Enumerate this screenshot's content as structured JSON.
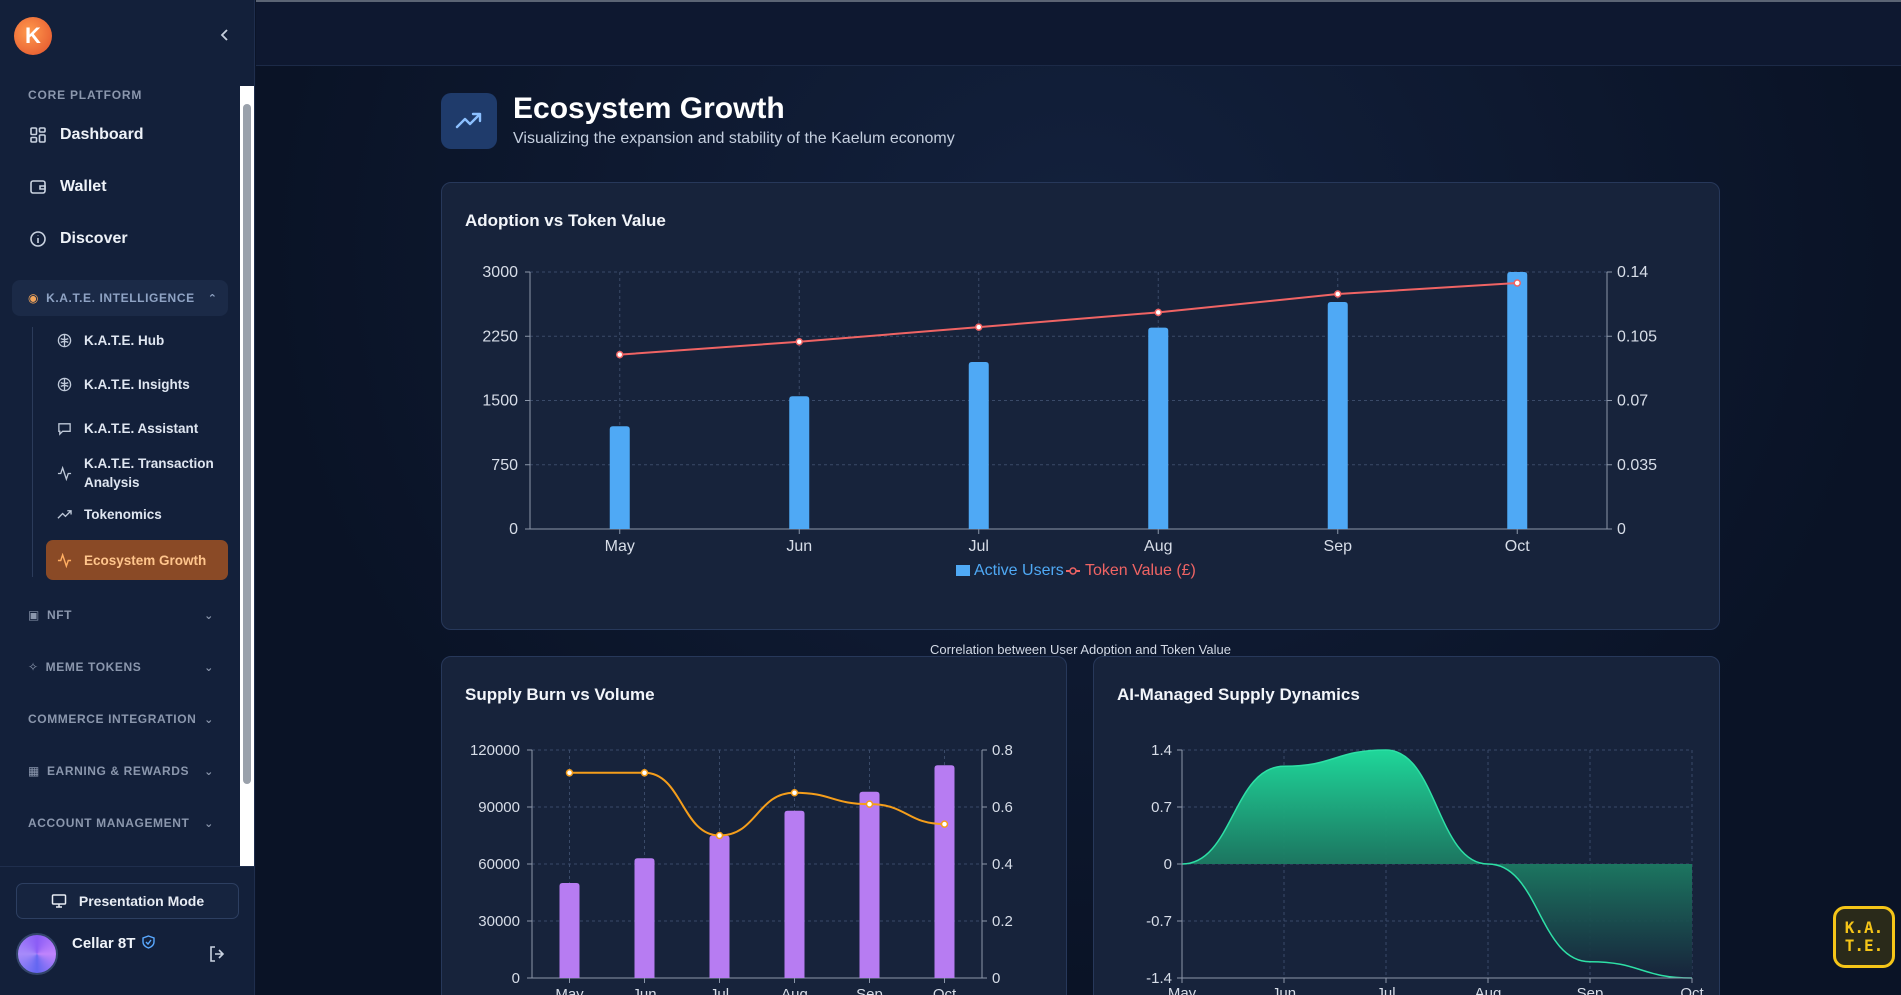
{
  "sidebar": {
    "logo_text": "K",
    "sections": {
      "core_platform": "CORE PLATFORM"
    },
    "core_items": [
      {
        "label": "Dashboard",
        "icon": "grid-icon"
      },
      {
        "label": "Wallet",
        "icon": "wallet-icon"
      },
      {
        "label": "Discover",
        "icon": "info-icon"
      }
    ],
    "kate_group": {
      "label": "K.A.T.E. INTELLIGENCE",
      "items": [
        {
          "label": "K.A.T.E. Hub"
        },
        {
          "label": "K.A.T.E. Insights"
        },
        {
          "label": "K.A.T.E. Assistant"
        },
        {
          "label": "K.A.T.E. Transaction Analysis"
        },
        {
          "label": "Tokenomics"
        },
        {
          "label": "Ecosystem Growth"
        }
      ]
    },
    "collapsed_groups": [
      {
        "label": "NFT"
      },
      {
        "label": "MEME TOKENS"
      },
      {
        "label": "COMMERCE INTEGRATION"
      },
      {
        "label": "EARNING & REWARDS"
      },
      {
        "label": "ACCOUNT MANAGEMENT"
      }
    ],
    "presentation_label": "Presentation Mode",
    "user_name": "Cellar 8T"
  },
  "page": {
    "title": "Ecosystem Growth",
    "subtitle": "Visualizing the expansion and stability of the Kaelum economy",
    "caption": "Correlation between User Adoption and Token Value"
  },
  "badge": {
    "line1": "K.A.",
    "line2": "T.E."
  },
  "colors": {
    "bar_blue": "#4fa9f5",
    "line_red": "#f06464",
    "bar_purple": "#b77cf2",
    "line_orange": "#f59e1b",
    "area_green": "#1fd79a"
  },
  "chart_data": [
    {
      "id": "adoption",
      "type": "bar",
      "title": "Adoption vs Token Value",
      "categories": [
        "May",
        "Jun",
        "Jul",
        "Aug",
        "Sep",
        "Oct"
      ],
      "series": [
        {
          "name": "Active Users",
          "kind": "bar",
          "axis": "left",
          "values": [
            1200,
            1550,
            1950,
            2350,
            2650,
            3000
          ]
        },
        {
          "name": "Token Value (£)",
          "kind": "line",
          "axis": "right",
          "values": [
            0.095,
            0.102,
            0.11,
            0.118,
            0.128,
            0.134
          ]
        }
      ],
      "yleft_ticks": [
        "0",
        "750",
        "1500",
        "2250",
        "3000"
      ],
      "yleft_range": [
        0,
        3000
      ],
      "yright_ticks": [
        "0",
        "0.035",
        "0.07",
        "0.105",
        "0.14"
      ],
      "yright_range": [
        0,
        0.14
      ],
      "legend": "bottom-center",
      "grid": true
    },
    {
      "id": "burn",
      "type": "bar",
      "title": "Supply Burn vs Volume",
      "categories": [
        "May",
        "Jun",
        "Jul",
        "Aug",
        "Sep",
        "Oct"
      ],
      "series": [
        {
          "kind": "bar",
          "axis": "left",
          "values": [
            50000,
            63000,
            75000,
            88000,
            98000,
            112000
          ]
        },
        {
          "kind": "line",
          "axis": "right",
          "values": [
            0.72,
            0.72,
            0.5,
            0.65,
            0.61,
            0.54
          ]
        }
      ],
      "yleft_ticks": [
        "0",
        "30000",
        "60000",
        "90000",
        "120000"
      ],
      "yleft_range": [
        0,
        120000
      ],
      "yright_ticks": [
        "0",
        "0.2",
        "0.4",
        "0.6",
        "0.8"
      ],
      "yright_range": [
        0,
        0.8
      ],
      "grid": true
    },
    {
      "id": "supply",
      "type": "area",
      "title": "AI-Managed Supply Dynamics",
      "categories": [
        "May",
        "Jun",
        "Jul",
        "Aug",
        "Sep",
        "Oct"
      ],
      "series": [
        {
          "kind": "area",
          "values": [
            0,
            1.2,
            1.4,
            0,
            -1.2,
            -1.4
          ]
        }
      ],
      "y_ticks": [
        "-1.4",
        "-0.7",
        "0",
        "0.7",
        "1.4"
      ],
      "y_range": [
        -1.4,
        1.4
      ],
      "grid": true
    }
  ]
}
